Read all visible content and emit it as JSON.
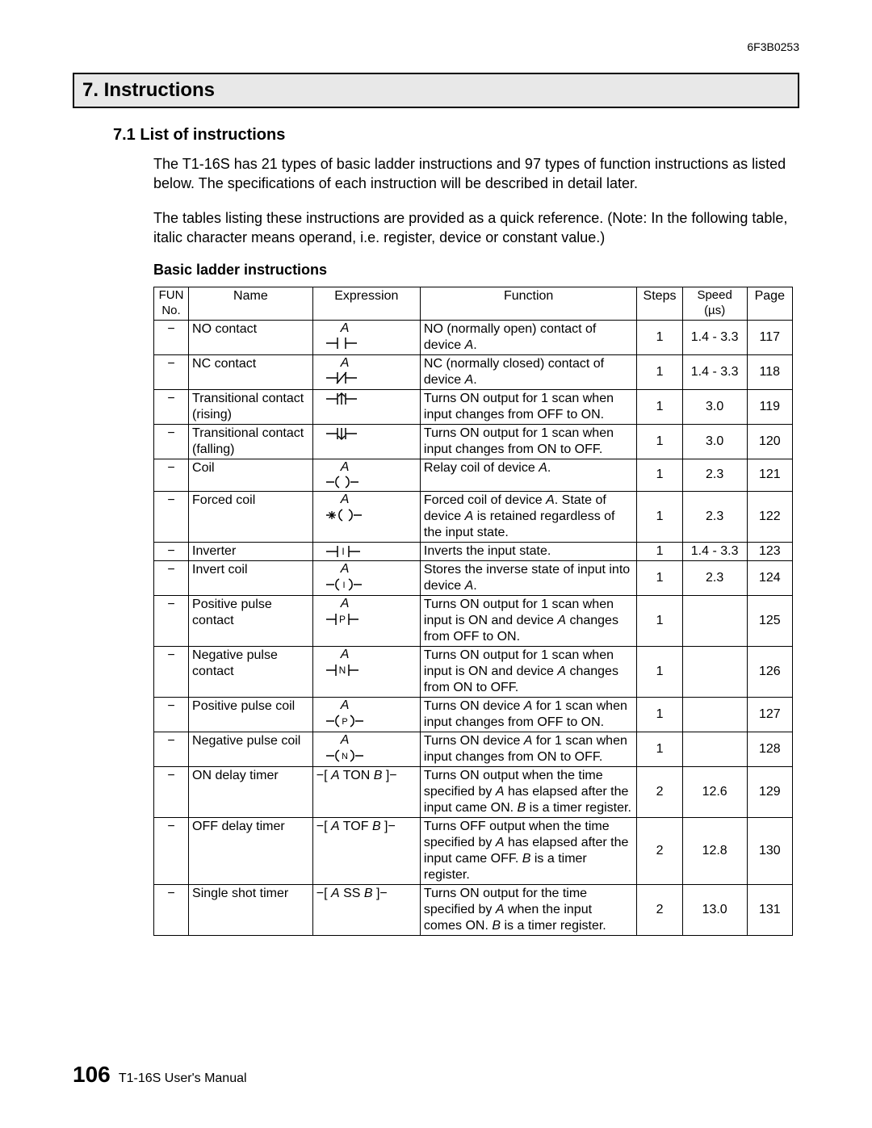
{
  "doc_code": "6F3B0253",
  "section_title": "7. Instructions",
  "subsection_title": "7.1  List of instructions",
  "intro_para1": "The T1-16S has 21 types of basic ladder instructions and 97 types of function instructions as listed below. The specifications of each instruction will be described in detail later.",
  "intro_para2": "The tables listing these instructions are provided as a quick reference. (Note: In the following table, italic character means operand, i.e. register, device or constant value.)",
  "table_title": "Basic ladder instructions",
  "headers": {
    "fun": "FUN No.",
    "name": "Name",
    "expr": "Expression",
    "func": "Function",
    "steps": "Steps",
    "speed": "Speed (µs)",
    "page": "Page"
  },
  "rows": [
    {
      "fun": "−",
      "name": "NO contact",
      "expr_label": "A",
      "expr_sym": "no",
      "func": "NO (normally open) contact of device <i>A</i>.",
      "steps": "1",
      "speed": "1.4 - 3.3",
      "page": "117"
    },
    {
      "fun": "−",
      "name": "NC contact",
      "expr_label": "A",
      "expr_sym": "nc",
      "func": "NC (normally closed) contact of device <i>A</i>.",
      "steps": "1",
      "speed": "1.4 - 3.3",
      "page": "118"
    },
    {
      "fun": "−",
      "name": "Transitional contact (rising)",
      "expr_label": "",
      "expr_sym": "trise",
      "func": "Turns ON output for 1 scan when input changes from OFF to ON.",
      "steps": "1",
      "speed": "3.0",
      "page": "119"
    },
    {
      "fun": "−",
      "name": "Transitional contact (falling)",
      "expr_label": "",
      "expr_sym": "tfall",
      "func": "Turns ON output for 1 scan when input changes from ON to OFF.",
      "steps": "1",
      "speed": "3.0",
      "page": "120"
    },
    {
      "fun": "−",
      "name": "Coil",
      "expr_label": "A",
      "expr_sym": "coil",
      "func": "Relay coil of device <i>A</i>.",
      "steps": "1",
      "speed": "2.3",
      "page": "121"
    },
    {
      "fun": "−",
      "name": "Forced coil",
      "expr_label": "A",
      "expr_sym": "fcoil",
      "func": "Forced coil of device <i>A</i>. State of device <i>A</i> is retained regardless of the input state.",
      "steps": "1",
      "speed": "2.3",
      "page": "122"
    },
    {
      "fun": "−",
      "name": "Inverter",
      "expr_label": "",
      "expr_sym": "inv",
      "func": "Inverts the input state.",
      "steps": "1",
      "speed": "1.4 - 3.3",
      "page": "123"
    },
    {
      "fun": "−",
      "name": "Invert coil",
      "expr_label": "A",
      "expr_sym": "icoil",
      "func": "Stores the inverse state of input into device <i>A</i>.",
      "steps": "1",
      "speed": "2.3",
      "page": "124"
    },
    {
      "fun": "−",
      "name": "Positive pulse contact",
      "expr_label": "A",
      "expr_sym": "ppc",
      "func": "Turns ON output for 1 scan when input is ON and device <i>A</i> changes from OFF to ON.",
      "steps": "1",
      "speed": "",
      "page": "125"
    },
    {
      "fun": "−",
      "name": "Negative pulse contact",
      "expr_label": "A",
      "expr_sym": "npc",
      "func": "Turns ON output for 1 scan when input is ON and device <i>A</i> changes from ON to OFF.",
      "steps": "1",
      "speed": "",
      "page": "126"
    },
    {
      "fun": "−",
      "name": "Positive pulse coil",
      "expr_label": "A",
      "expr_sym": "ppcoil",
      "func": "Turns ON device <i>A</i> for 1 scan when input changes from OFF to ON.",
      "steps": "1",
      "speed": "",
      "page": "127"
    },
    {
      "fun": "−",
      "name": "Negative pulse coil",
      "expr_label": "A",
      "expr_sym": "npcoil",
      "func": "Turns ON device <i>A</i> for 1 scan when input changes from ON to OFF.",
      "steps": "1",
      "speed": "",
      "page": "128"
    },
    {
      "fun": "−",
      "name": "ON delay timer",
      "expr_text": "−[ <i>A</i>  TON  <i>B</i> ]−",
      "func": "Turns ON output when the time specified by <i>A</i> has elapsed after the input came ON. <i>B</i> is a timer register.",
      "steps": "2",
      "speed": "12.6",
      "page": "129"
    },
    {
      "fun": "−",
      "name": "OFF delay timer",
      "expr_text": "−[ <i>A</i>  TOF  <i>B</i> ]−",
      "func": "Turns OFF output when the time specified by <i>A</i> has elapsed after the input came OFF. <i>B</i> is a timer register.",
      "steps": "2",
      "speed": "12.8",
      "page": "130"
    },
    {
      "fun": "−",
      "name": "Single shot timer",
      "expr_text": "−[ <i>A</i>  SS  <i>B</i> ]−",
      "func": "Turns ON output for the time specified by <i>A</i> when the input comes ON. <i>B</i> is a timer register.",
      "steps": "2",
      "speed": "13.0",
      "page": "131"
    }
  ],
  "footer_page": "106",
  "footer_text": "T1-16S User's Manual",
  "colors": {
    "header_bg": "#e8e8e8",
    "border": "#000000",
    "text": "#000000",
    "background": "#ffffff"
  }
}
